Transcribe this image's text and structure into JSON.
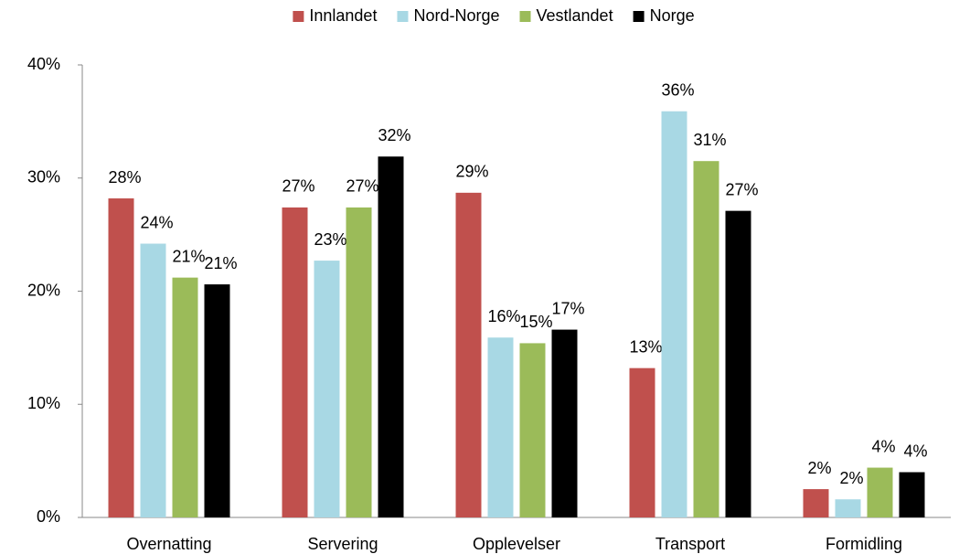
{
  "chart_data": {
    "type": "bar",
    "categories": [
      "Overnatting",
      "Servering",
      "Opplevelser",
      "Transport",
      "Formidling"
    ],
    "series": [
      {
        "name": "Innlandet",
        "color": "#c0504d",
        "values": [
          28.2,
          27.4,
          28.7,
          13.2,
          2.5
        ],
        "value_labels": [
          "28%",
          "27%",
          "29%",
          "13%",
          "2%"
        ]
      },
      {
        "name": "Nord-Norge",
        "color": "#a8d8e4",
        "values": [
          24.2,
          22.7,
          15.9,
          35.9,
          1.6
        ],
        "value_labels": [
          "24%",
          "23%",
          "16%",
          "36%",
          "2%"
        ]
      },
      {
        "name": "Vestlandet",
        "color": "#9bbb59",
        "values": [
          21.2,
          27.4,
          15.4,
          31.5,
          4.4
        ],
        "value_labels": [
          "21%",
          "27%",
          "15%",
          "31%",
          "4%"
        ]
      },
      {
        "name": "Norge",
        "color": "#000000",
        "values": [
          20.6,
          31.9,
          16.6,
          27.1,
          4.0
        ],
        "value_labels": [
          "21%",
          "32%",
          "17%",
          "27%",
          "4%"
        ]
      }
    ],
    "ylim": [
      0,
      40
    ],
    "yticks": [
      {
        "value": 0,
        "label": "0%"
      },
      {
        "value": 10,
        "label": "10%"
      },
      {
        "value": 20,
        "label": "20%"
      },
      {
        "value": 30,
        "label": "30%"
      },
      {
        "value": 40,
        "label": "40%"
      }
    ],
    "legend": "top"
  }
}
